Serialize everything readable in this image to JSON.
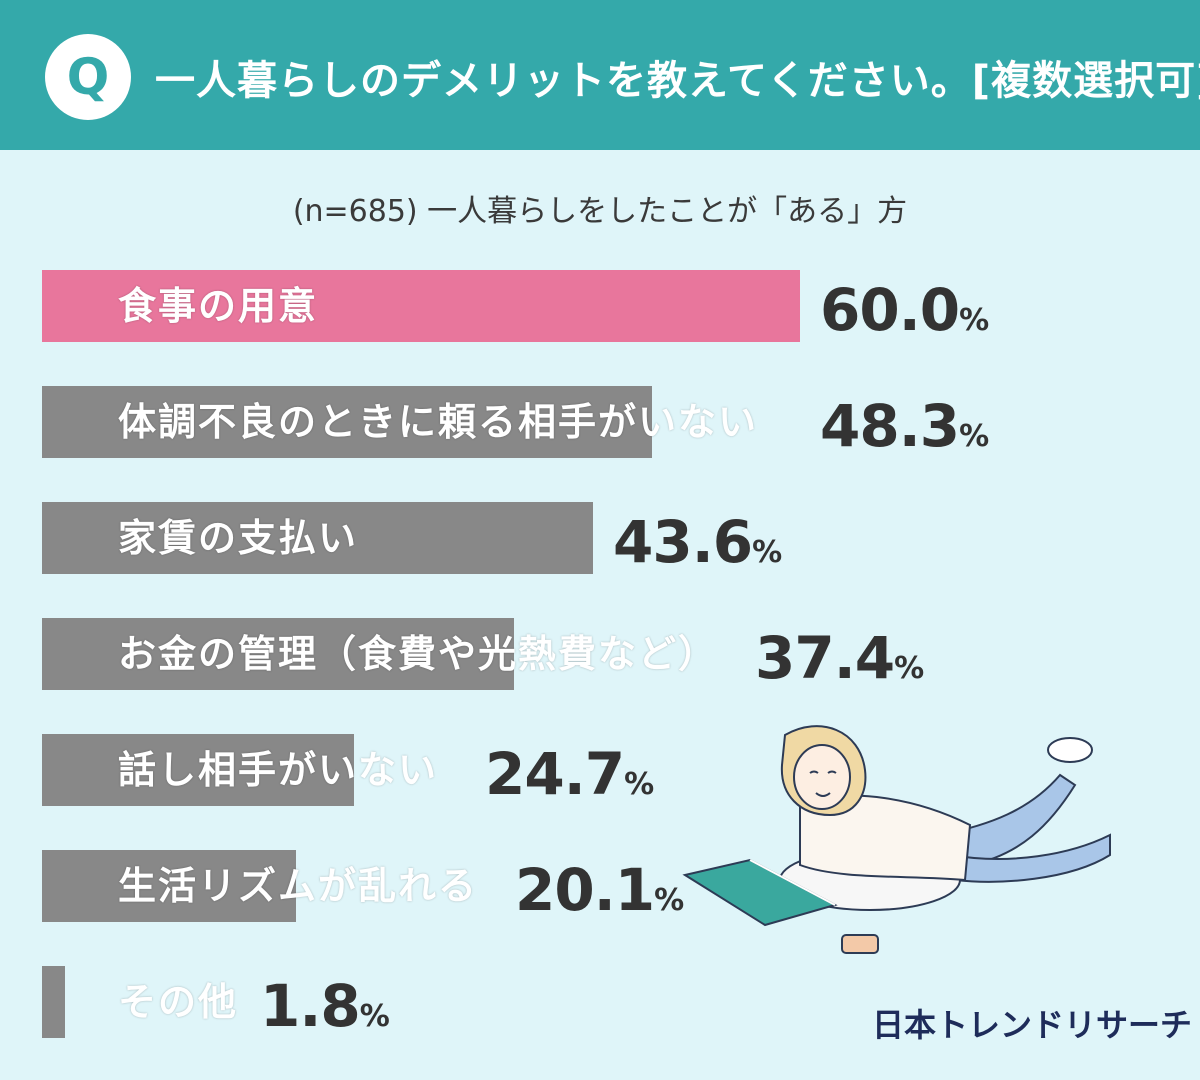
{
  "header": {
    "badge": "Q",
    "question": "一人暮らしのデメリットを教えてください。[複数選択可]",
    "color": "#34a9aa"
  },
  "subtitle": "(n=685) 一人暮らしをしたことが「ある」方",
  "chart_data": {
    "type": "bar",
    "orientation": "horizontal",
    "title": "一人暮らしのデメリットを教えてください。[複数選択可]",
    "subtitle": "(n=685) 一人暮らしをしたことが「ある」方",
    "unit": "%",
    "xlim": [
      0,
      60
    ],
    "categories": [
      "食事の用意",
      "体調不良のときに頼る相手がいない",
      "家賃の支払い",
      "お金の管理（食費や光熱費など）",
      "話し相手がいない",
      "生活リズムが乱れる",
      "その他"
    ],
    "values": [
      60.0,
      48.3,
      43.6,
      37.4,
      24.7,
      20.1,
      1.8
    ],
    "value_labels": [
      "60.0",
      "48.3",
      "43.6",
      "37.4",
      "24.7",
      "20.1",
      "1.8"
    ],
    "highlight_color": "#e8769c",
    "bar_color": "#888888"
  },
  "logo": "日本トレンドリサーチ",
  "illustration": "woman-reading-book-illustration"
}
